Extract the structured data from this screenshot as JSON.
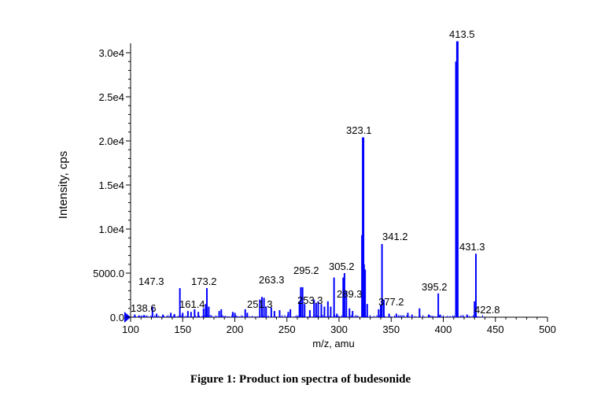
{
  "chart_data": {
    "type": "bar",
    "xlabel": "m/z, amu",
    "ylabel": "Intensity, cps",
    "xlim": [
      100,
      500
    ],
    "ylim": [
      0,
      31500
    ],
    "x_ticks": [
      "100",
      "150",
      "200",
      "250",
      "300",
      "350",
      "400",
      "450",
      "500"
    ],
    "x_tick_values": [
      100,
      150,
      200,
      250,
      300,
      350,
      400,
      450,
      500
    ],
    "y_ticks": [
      "0.0",
      "5000.0",
      "1.0e4",
      "1.5e4",
      "2.0e4",
      "2.5e4",
      "3.0e4"
    ],
    "y_tick_values": [
      0,
      5000,
      10000,
      15000,
      20000,
      25000,
      30000
    ],
    "grid": false,
    "color": "#0000ff",
    "peaks": [
      [
        104,
        300
      ],
      [
        108,
        200
      ],
      [
        113,
        250
      ],
      [
        121,
        1200
      ],
      [
        125,
        400
      ],
      [
        131,
        300
      ],
      [
        138.6,
        500
      ],
      [
        142,
        350
      ],
      [
        147.3,
        3300
      ],
      [
        150,
        500
      ],
      [
        155,
        700
      ],
      [
        158,
        600
      ],
      [
        161.4,
        900
      ],
      [
        165,
        600
      ],
      [
        170,
        1000
      ],
      [
        172,
        1500
      ],
      [
        173.2,
        3300
      ],
      [
        175,
        1200
      ],
      [
        185,
        700
      ],
      [
        187,
        900
      ],
      [
        198,
        600
      ],
      [
        200,
        500
      ],
      [
        210,
        900
      ],
      [
        212,
        500
      ],
      [
        224,
        2000
      ],
      [
        226,
        2300
      ],
      [
        228,
        2200
      ],
      [
        230,
        1200
      ],
      [
        235,
        1100
      ],
      [
        238,
        700
      ],
      [
        243,
        800
      ],
      [
        251.3,
        600
      ],
      [
        253.3,
        900
      ],
      [
        262,
        1800
      ],
      [
        263.3,
        3400
      ],
      [
        265,
        3400
      ],
      [
        267,
        1500
      ],
      [
        272,
        800
      ],
      [
        276,
        2000
      ],
      [
        278,
        1600
      ],
      [
        280,
        1800
      ],
      [
        283,
        1500
      ],
      [
        286,
        1200
      ],
      [
        289.3,
        1800
      ],
      [
        292,
        1200
      ],
      [
        295.2,
        4500
      ],
      [
        298,
        400
      ],
      [
        304,
        4500
      ],
      [
        305.2,
        5000
      ],
      [
        307,
        3000
      ],
      [
        310,
        1000
      ],
      [
        313,
        700
      ],
      [
        322,
        9300
      ],
      [
        323.1,
        20400
      ],
      [
        324,
        6000
      ],
      [
        325,
        5400
      ],
      [
        327,
        1500
      ],
      [
        338,
        900
      ],
      [
        340,
        1400
      ],
      [
        341.2,
        8300
      ],
      [
        343,
        2000
      ],
      [
        348,
        400
      ],
      [
        355,
        400
      ],
      [
        366,
        500
      ],
      [
        370,
        300
      ],
      [
        377.2,
        1000
      ],
      [
        386,
        300
      ],
      [
        395.2,
        2700
      ],
      [
        397,
        300
      ],
      [
        412.5,
        29000
      ],
      [
        413.5,
        31300
      ],
      [
        422.8,
        300
      ],
      [
        430,
        1800
      ],
      [
        431.3,
        7200
      ]
    ],
    "labels": [
      {
        "text": "413.5",
        "x": 413.5
      },
      {
        "text": "323.1",
        "x": 323.1
      },
      {
        "text": "341.2",
        "x": 341.2
      },
      {
        "text": "431.3",
        "x": 431.3
      },
      {
        "text": "305.2",
        "x": 305.2
      },
      {
        "text": "295.2",
        "x": 295.2
      },
      {
        "text": "263.3",
        "x": 263.3
      },
      {
        "text": "147.3",
        "x": 147.3
      },
      {
        "text": "173.2",
        "x": 173.2
      },
      {
        "text": "395.2",
        "x": 395.2
      },
      {
        "text": "289.3",
        "x": 289.3
      },
      {
        "text": "253.3",
        "x": 253.3
      },
      {
        "text": "251.3",
        "x": 251.3
      },
      {
        "text": "161.4",
        "x": 161.4
      },
      {
        "text": "138.6",
        "x": 138.6
      },
      {
        "text": "377.2",
        "x": 377.2
      },
      {
        "text": "422.8",
        "x": 422.8
      }
    ]
  },
  "caption": "Figure 1: Product ion spectra of budesonide"
}
